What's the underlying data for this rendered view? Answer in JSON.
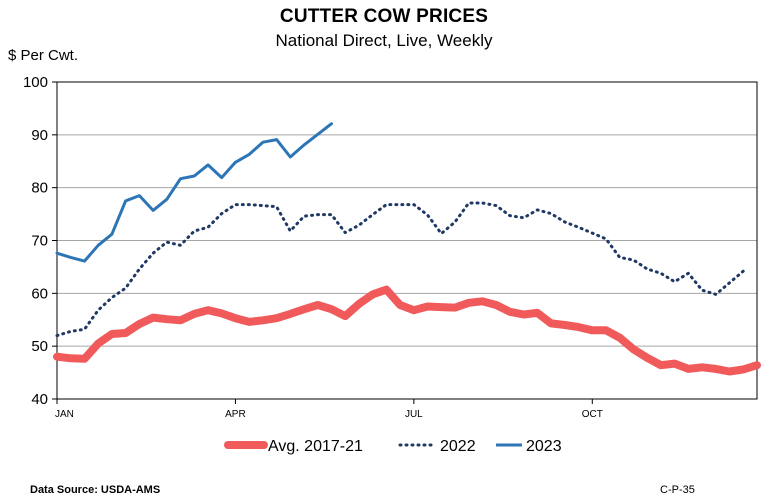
{
  "chart_data": {
    "type": "line",
    "title": "CUTTER COW PRICES",
    "subtitle": "National Direct, Live, Weekly",
    "ylabel": "$ Per Cwt.",
    "ylim": [
      40,
      100
    ],
    "yticks": [
      "100",
      "90",
      "80",
      "70",
      "60",
      "50",
      "40"
    ],
    "yticks_values": [
      100,
      90,
      80,
      70,
      60,
      50,
      40
    ],
    "xlim": [
      1,
      52
    ],
    "xticks": [
      "JAN",
      "APR",
      "JUL",
      "OCT"
    ],
    "xticks_weeks": [
      1,
      14,
      27,
      40
    ],
    "grid": true,
    "legend_position": "bottom",
    "series": [
      {
        "name": "Avg. 2017-21",
        "color": "#f05a5a",
        "style": "solid-thick",
        "weeks": [
          1,
          2,
          3,
          4,
          5,
          6,
          7,
          8,
          9,
          10,
          11,
          12,
          13,
          14,
          15,
          16,
          17,
          18,
          19,
          20,
          21,
          22,
          23,
          24,
          25,
          26,
          27,
          28,
          29,
          30,
          31,
          32,
          33,
          34,
          35,
          36,
          37,
          38,
          39,
          40,
          41,
          42,
          43,
          44,
          45,
          46,
          47,
          48,
          49,
          50,
          51,
          52
        ],
        "values": [
          48,
          47.7,
          47.6,
          50.5,
          52.3,
          52.5,
          54.2,
          55.4,
          55.1,
          54.9,
          56.1,
          56.8,
          56.2,
          55.3,
          54.6,
          54.9,
          55.3,
          56.1,
          57,
          57.8,
          57,
          55.7,
          58,
          59.8,
          60.7,
          57.8,
          56.8,
          57.5,
          57.4,
          57.3,
          58.2,
          58.5,
          57.8,
          56.5,
          56,
          56.3,
          54.3,
          54,
          53.6,
          53,
          53,
          51.6,
          49.4,
          47.8,
          46.4,
          46.7,
          45.7,
          46,
          45.7,
          45.2,
          45.6,
          46.4
        ]
      },
      {
        "name": "2022",
        "color": "#1f3864",
        "style": "dotted",
        "weeks": [
          1,
          2,
          3,
          4,
          5,
          6,
          7,
          8,
          9,
          10,
          11,
          12,
          13,
          14,
          15,
          16,
          17,
          18,
          19,
          20,
          21,
          22,
          23,
          24,
          25,
          26,
          27,
          28,
          29,
          30,
          31,
          32,
          33,
          34,
          35,
          36,
          37,
          38,
          39,
          40,
          41,
          42,
          43,
          44,
          45,
          46,
          47,
          48,
          49,
          50,
          51,
          52
        ],
        "values": [
          52,
          52.8,
          53.2,
          56.8,
          59.2,
          61,
          64.6,
          67.6,
          69.7,
          69.1,
          71.8,
          72.5,
          75.1,
          76.8,
          76.8,
          76.6,
          76.4,
          71.8,
          74.6,
          74.9,
          74.9,
          71.5,
          72.9,
          74.9,
          76.8,
          76.8,
          76.8,
          74.8,
          71.3,
          73.5,
          77.1,
          77.1,
          76.6,
          74.7,
          74.3,
          75.8,
          75.1,
          73.5,
          72.5,
          71.4,
          70.3,
          66.8,
          66.3,
          64.6,
          63.8,
          62.2,
          63.8,
          60.6,
          59.8,
          62,
          64.2,
          null
        ]
      },
      {
        "name": "2023",
        "color": "#2e75b6",
        "style": "solid",
        "weeks": [
          1,
          2,
          3,
          4,
          5,
          6,
          7,
          8,
          9,
          10,
          11,
          12,
          13,
          14,
          15,
          16,
          17,
          18,
          19,
          20,
          21
        ],
        "values": [
          67.6,
          66.8,
          66.1,
          69.1,
          71.2,
          77.5,
          78.5,
          75.7,
          77.8,
          81.7,
          82.2,
          84.3,
          81.9,
          84.8,
          86.3,
          88.6,
          89.1,
          85.8,
          88.1,
          90.1,
          92.1
        ]
      }
    ]
  },
  "footer": {
    "source": "Data Source:  USDA-AMS",
    "code": "C-P-35"
  }
}
